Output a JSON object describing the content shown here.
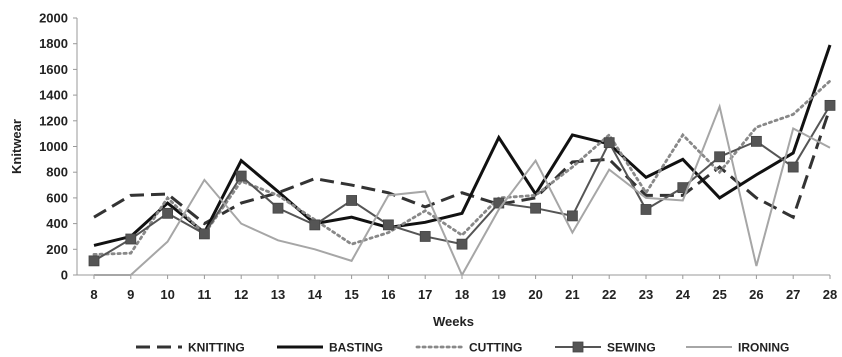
{
  "chart_data": {
    "type": "line",
    "title": "",
    "xlabel": "Weeks",
    "ylabel": "Knitwear",
    "x": [
      "8",
      "9",
      "10",
      "11",
      "12",
      "13",
      "14",
      "15",
      "16",
      "17",
      "18",
      "19",
      "20",
      "21",
      "22",
      "23",
      "24",
      "25",
      "26",
      "27",
      "28"
    ],
    "ylim": [
      0,
      2000
    ],
    "yticks": [
      0,
      200,
      400,
      600,
      800,
      1000,
      1200,
      1400,
      1600,
      1800,
      2000
    ],
    "grid": false,
    "legend_position": "bottom",
    "series": [
      {
        "name": "KNITTING",
        "style": "dashed",
        "color": "#333333",
        "values": [
          450,
          620,
          630,
          400,
          560,
          640,
          750,
          700,
          640,
          530,
          640,
          550,
          600,
          880,
          900,
          620,
          620,
          840,
          600,
          450,
          1300
        ]
      },
      {
        "name": "BASTING",
        "style": "solid-thick",
        "color": "#111111",
        "values": [
          230,
          300,
          560,
          330,
          890,
          650,
          400,
          450,
          370,
          410,
          480,
          1070,
          630,
          1090,
          1020,
          760,
          900,
          600,
          780,
          950,
          1790
        ]
      },
      {
        "name": "CUTTING",
        "style": "dotted",
        "color": "#888888",
        "values": [
          160,
          170,
          600,
          320,
          730,
          620,
          430,
          240,
          330,
          500,
          310,
          600,
          620,
          840,
          1090,
          640,
          1090,
          800,
          1150,
          1250,
          1510
        ]
      },
      {
        "name": "SEWING",
        "style": "solid-square-markers",
        "color": "#555555",
        "values": [
          110,
          280,
          480,
          320,
          770,
          520,
          390,
          580,
          390,
          300,
          240,
          560,
          520,
          460,
          1030,
          510,
          680,
          920,
          1040,
          840,
          1320
        ]
      },
      {
        "name": "IRONING",
        "style": "solid-thin",
        "color": "#a6a6a6",
        "values": [
          0,
          0,
          260,
          740,
          400,
          270,
          200,
          110,
          620,
          650,
          0,
          510,
          890,
          330,
          820,
          600,
          580,
          1310,
          70,
          1140,
          990
        ]
      }
    ]
  }
}
